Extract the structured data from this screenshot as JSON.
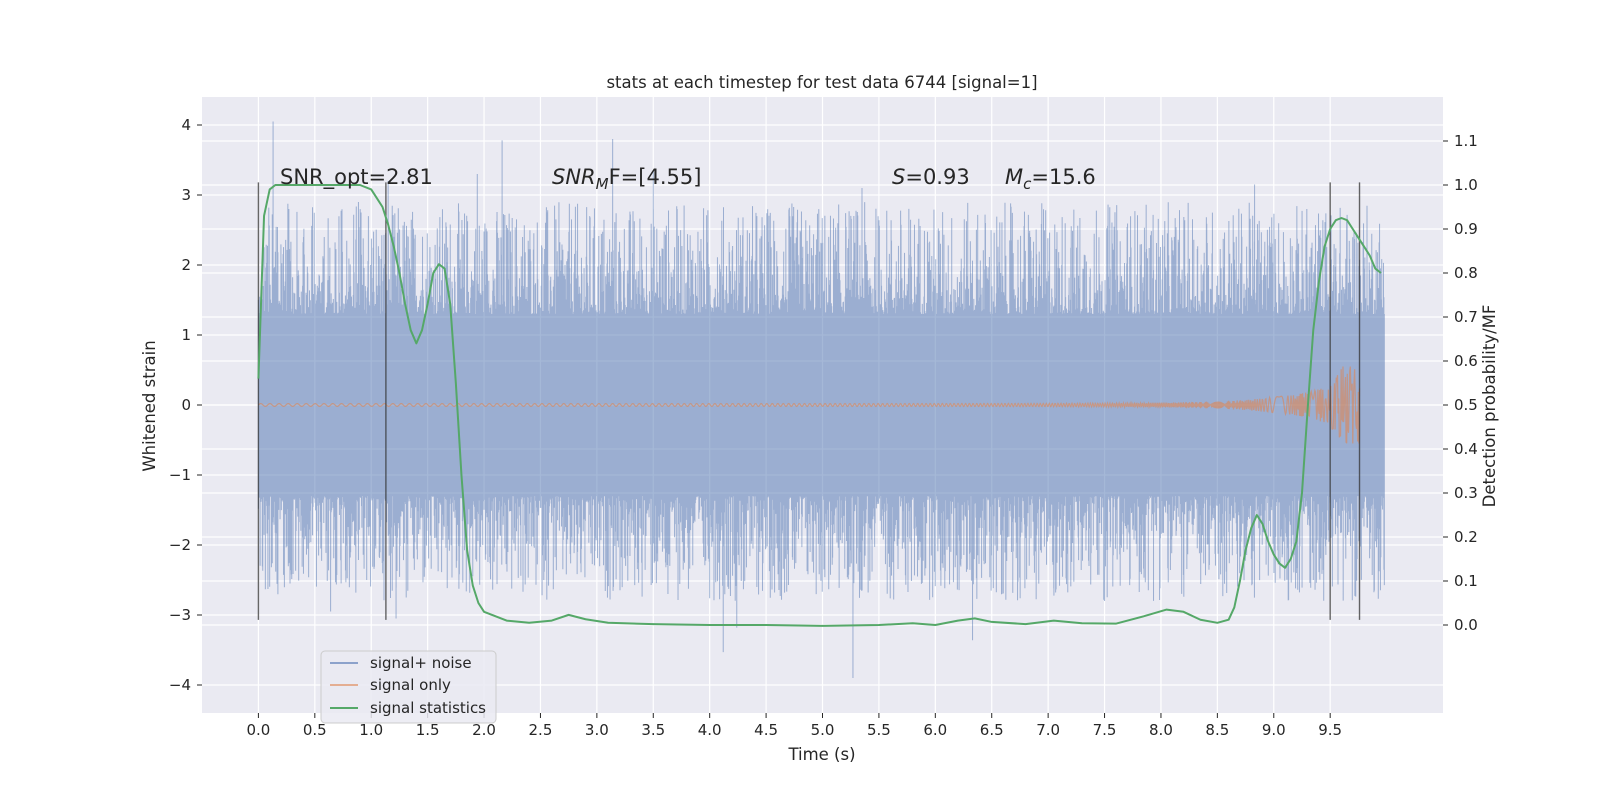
{
  "chart_data": {
    "type": "line",
    "title": "stats at each timestep for test data 6744 [signal=1]",
    "xlabel": "Time (s)",
    "ylabel": "Whitened strain",
    "y2label": "Detection probability/MF",
    "xlim": [
      -0.5,
      10.5
    ],
    "ylim": [
      -4.4,
      4.4
    ],
    "y2lim": [
      -0.2,
      1.2
    ],
    "xticks": [
      0.0,
      0.5,
      1.0,
      1.5,
      2.0,
      2.5,
      3.0,
      3.5,
      4.0,
      4.5,
      5.0,
      5.5,
      6.0,
      6.5,
      7.0,
      7.5,
      8.0,
      8.5,
      9.0,
      9.5
    ],
    "xtick_labels": [
      "0.0",
      "0.5",
      "1.0",
      "1.5",
      "2.0",
      "2.5",
      "3.0",
      "3.5",
      "4.0",
      "4.5",
      "5.0",
      "5.5",
      "6.0",
      "6.5",
      "7.0",
      "7.5",
      "8.0",
      "8.5",
      "9.0",
      "9.5"
    ],
    "yticks": [
      -4,
      -3,
      -2,
      -1,
      0,
      1,
      2,
      3,
      4
    ],
    "ytick_labels": [
      "−4",
      "−3",
      "−2",
      "−1",
      "0",
      "1",
      "2",
      "3",
      "4"
    ],
    "y2ticks": [
      0.0,
      0.1,
      0.2,
      0.3,
      0.4,
      0.5,
      0.6,
      0.7,
      0.8,
      0.9,
      1.0,
      1.1
    ],
    "y2tick_labels": [
      "0.0",
      "0.1",
      "0.2",
      "0.3",
      "0.4",
      "0.5",
      "0.6",
      "0.7",
      "0.8",
      "0.9",
      "1.0",
      "1.1"
    ],
    "grid": true,
    "legend_position": "lower-left",
    "annotations": {
      "snr_opt": "SNR_opt=2.81",
      "snr_mf_label": "SNR",
      "snr_mf_sub": "M",
      "snr_mf_rest": "F=[4.55]",
      "s_label": "S",
      "s_value": "=0.93",
      "mc_label": "M",
      "mc_sub": "c",
      "mc_value": "=15.6"
    },
    "vertical_lines": {
      "x": [
        0.0,
        1.13,
        9.5,
        9.76
      ],
      "y_range": [
        -3.07,
        3.18
      ]
    },
    "series": [
      {
        "name": "signal+ noise",
        "color": "#4c72b0",
        "axis": "left",
        "style": "dense noise band, roughly ±1.3 with spikes up to ±4",
        "x_range": [
          0.0,
          9.98
        ],
        "peaks": [
          [
            0.13,
            4.05
          ],
          [
            0.27,
            2.8
          ],
          [
            1.15,
            3.2
          ],
          [
            1.94,
            3.3
          ],
          [
            2.16,
            3.78
          ],
          [
            3.14,
            3.8
          ],
          [
            3.5,
            3.35
          ],
          [
            5.35,
            3.1
          ],
          [
            8.83,
            3.15
          ],
          [
            0.64,
            -2.95
          ],
          [
            0.96,
            -2.5
          ],
          [
            1.22,
            -3.05
          ],
          [
            1.31,
            -2.75
          ],
          [
            3.63,
            -2.7
          ],
          [
            4.12,
            -3.53
          ],
          [
            4.24,
            -3.18
          ],
          [
            5.27,
            -3.9
          ],
          [
            6.33,
            -3.36
          ],
          [
            7.05,
            -2.62
          ],
          [
            7.5,
            -2.8
          ],
          [
            9.2,
            -2.4
          ]
        ]
      },
      {
        "name": "signal only",
        "color": "#dd8452",
        "axis": "left",
        "style": "chirp waveform, near zero until ~8.5 s, growing to ±0.5 near 9.6 s, ending at 9.76 s",
        "x_range": [
          0.0,
          9.76
        ]
      },
      {
        "name": "signal statistics",
        "color": "#55a868",
        "axis": "right",
        "x": [
          0.0,
          0.05,
          0.1,
          0.15,
          0.2,
          0.3,
          0.4,
          0.5,
          0.6,
          0.7,
          0.8,
          0.9,
          1.0,
          1.05,
          1.1,
          1.15,
          1.2,
          1.25,
          1.3,
          1.35,
          1.4,
          1.45,
          1.5,
          1.55,
          1.6,
          1.65,
          1.7,
          1.75,
          1.8,
          1.85,
          1.9,
          1.95,
          2.0,
          2.1,
          2.2,
          2.4,
          2.6,
          2.75,
          2.9,
          3.1,
          3.5,
          4.0,
          4.5,
          5.0,
          5.5,
          5.8,
          6.0,
          6.2,
          6.35,
          6.5,
          6.8,
          7.05,
          7.3,
          7.6,
          7.85,
          8.05,
          8.2,
          8.35,
          8.5,
          8.6,
          8.65,
          8.7,
          8.75,
          8.8,
          8.85,
          8.9,
          8.95,
          9.0,
          9.05,
          9.1,
          9.15,
          9.2,
          9.25,
          9.3,
          9.35,
          9.4,
          9.45,
          9.5,
          9.55,
          9.6,
          9.65,
          9.7,
          9.75,
          9.8,
          9.85,
          9.9,
          9.95
        ],
        "values": [
          0.56,
          0.93,
          0.99,
          1.0,
          1.0,
          1.0,
          1.0,
          1.0,
          1.0,
          1.0,
          1.0,
          1.0,
          0.99,
          0.97,
          0.95,
          0.91,
          0.86,
          0.8,
          0.73,
          0.67,
          0.64,
          0.67,
          0.73,
          0.8,
          0.82,
          0.81,
          0.73,
          0.55,
          0.34,
          0.17,
          0.09,
          0.05,
          0.03,
          0.02,
          0.01,
          0.005,
          0.01,
          0.023,
          0.013,
          0.005,
          0.002,
          0.0,
          0.0,
          -0.002,
          0.0,
          0.004,
          0.0,
          0.01,
          0.015,
          0.007,
          0.002,
          0.01,
          0.004,
          0.003,
          0.02,
          0.035,
          0.03,
          0.012,
          0.005,
          0.012,
          0.04,
          0.1,
          0.17,
          0.22,
          0.25,
          0.23,
          0.19,
          0.16,
          0.14,
          0.13,
          0.15,
          0.19,
          0.3,
          0.49,
          0.67,
          0.78,
          0.86,
          0.9,
          0.92,
          0.925,
          0.92,
          0.9,
          0.88,
          0.86,
          0.84,
          0.81,
          0.8
        ]
      }
    ]
  }
}
